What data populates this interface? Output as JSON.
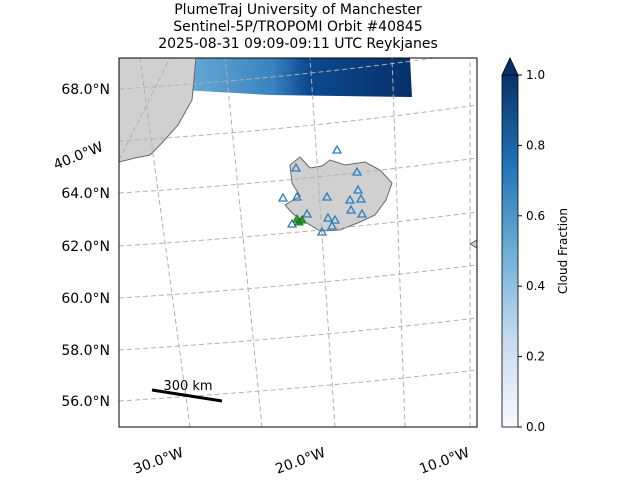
{
  "title": {
    "lines": [
      "PlumeTraj    University of Manchester",
      "Sentinel-5P/TROPOMI Orbit #40845",
      "2025-08-31   09:09-09:11 UTC   Reykjanes"
    ]
  },
  "map": {
    "lat_labels": [
      "68.0°N",
      "64.0°N",
      "62.0°N",
      "60.0°N",
      "58.0°N",
      "56.0°N"
    ],
    "lon_labels": [
      "40.0°W",
      "30.0°W",
      "20.0°W",
      "10.0°W"
    ],
    "scale_label": "300 km"
  },
  "colorbar": {
    "label": "Cloud Fraction",
    "lim": [
      0,
      1
    ],
    "ticks": [
      {
        "value": 0,
        "label": "0.0"
      },
      {
        "value": 0.2,
        "label": "0.2"
      },
      {
        "value": 0.4,
        "label": "0.4"
      },
      {
        "value": 0.6,
        "label": "0.6"
      },
      {
        "value": 0.8,
        "label": "0.8"
      },
      {
        "value": 1,
        "label": "1.0"
      }
    ]
  }
}
